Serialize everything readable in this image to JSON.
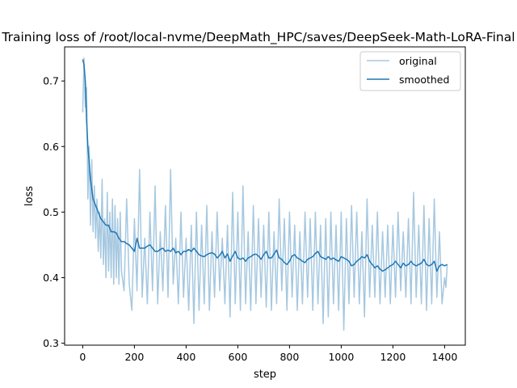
{
  "chart_data": {
    "type": "line",
    "title": "Training loss of /root/local-nvme/DeepMath_HPC/saves/DeepSeek-Math-LoRA-Final",
    "xlabel": "step",
    "ylabel": "loss",
    "xlim": [
      -70,
      1480
    ],
    "ylim": [
      0.297,
      0.752
    ],
    "xticks": [
      0,
      200,
      400,
      600,
      800,
      1000,
      1200,
      1400
    ],
    "yticks": [
      0.3,
      0.4,
      0.5,
      0.6,
      0.7
    ],
    "grid": false,
    "legend": {
      "position": "top-right",
      "entries": [
        "original",
        "smoothed"
      ]
    },
    "colors": {
      "original": "#a6c8e0",
      "smoothed": "#1f77b4"
    },
    "series": [
      {
        "name": "original",
        "x": [
          0,
          5,
          10,
          15,
          20,
          25,
          30,
          35,
          40,
          45,
          50,
          55,
          60,
          65,
          70,
          75,
          80,
          85,
          90,
          95,
          100,
          105,
          110,
          115,
          120,
          125,
          130,
          135,
          140,
          145,
          150,
          160,
          170,
          180,
          190,
          200,
          210,
          220,
          230,
          240,
          250,
          260,
          270,
          280,
          290,
          300,
          310,
          320,
          330,
          340,
          350,
          360,
          370,
          380,
          390,
          400,
          410,
          420,
          430,
          440,
          450,
          460,
          470,
          480,
          490,
          500,
          510,
          520,
          530,
          540,
          550,
          560,
          570,
          580,
          590,
          600,
          610,
          620,
          630,
          640,
          650,
          660,
          670,
          680,
          690,
          700,
          710,
          720,
          730,
          740,
          750,
          760,
          770,
          780,
          790,
          800,
          810,
          820,
          830,
          840,
          850,
          860,
          870,
          880,
          890,
          900,
          910,
          920,
          930,
          940,
          950,
          960,
          970,
          980,
          990,
          1000,
          1010,
          1020,
          1030,
          1040,
          1050,
          1060,
          1070,
          1080,
          1090,
          1100,
          1110,
          1120,
          1130,
          1140,
          1150,
          1160,
          1170,
          1180,
          1190,
          1200,
          1210,
          1220,
          1230,
          1240,
          1250,
          1260,
          1270,
          1280,
          1290,
          1300,
          1310,
          1320,
          1330,
          1340,
          1350,
          1360,
          1370,
          1380,
          1390,
          1400,
          1405,
          1410
        ],
        "y": [
          0.652,
          0.735,
          0.66,
          0.69,
          0.52,
          0.6,
          0.48,
          0.58,
          0.47,
          0.54,
          0.46,
          0.52,
          0.44,
          0.5,
          0.43,
          0.55,
          0.42,
          0.49,
          0.4,
          0.53,
          0.41,
          0.5,
          0.4,
          0.52,
          0.39,
          0.51,
          0.4,
          0.49,
          0.39,
          0.5,
          0.41,
          0.38,
          0.52,
          0.39,
          0.35,
          0.49,
          0.38,
          0.565,
          0.37,
          0.46,
          0.36,
          0.5,
          0.38,
          0.54,
          0.36,
          0.47,
          0.38,
          0.51,
          0.37,
          0.565,
          0.39,
          0.46,
          0.36,
          0.5,
          0.37,
          0.46,
          0.35,
          0.48,
          0.33,
          0.5,
          0.35,
          0.48,
          0.36,
          0.51,
          0.35,
          0.47,
          0.37,
          0.5,
          0.38,
          0.46,
          0.36,
          0.48,
          0.34,
          0.53,
          0.36,
          0.5,
          0.35,
          0.54,
          0.36,
          0.47,
          0.35,
          0.51,
          0.36,
          0.49,
          0.37,
          0.48,
          0.355,
          0.5,
          0.35,
          0.47,
          0.36,
          0.52,
          0.38,
          0.49,
          0.35,
          0.5,
          0.37,
          0.48,
          0.35,
          0.47,
          0.36,
          0.5,
          0.37,
          0.49,
          0.35,
          0.5,
          0.36,
          0.48,
          0.33,
          0.49,
          0.34,
          0.5,
          0.36,
          0.48,
          0.35,
          0.5,
          0.32,
          0.49,
          0.36,
          0.51,
          0.37,
          0.5,
          0.36,
          0.47,
          0.34,
          0.52,
          0.37,
          0.48,
          0.37,
          0.5,
          0.36,
          0.47,
          0.37,
          0.48,
          0.36,
          0.48,
          0.37,
          0.5,
          0.38,
          0.47,
          0.37,
          0.49,
          0.36,
          0.53,
          0.37,
          0.48,
          0.36,
          0.51,
          0.35,
          0.49,
          0.36,
          0.52,
          0.37,
          0.47,
          0.36,
          0.4,
          0.385,
          0.42
        ]
      },
      {
        "name": "smoothed",
        "x": [
          0,
          5,
          10,
          15,
          20,
          30,
          40,
          50,
          60,
          70,
          80,
          90,
          100,
          110,
          120,
          130,
          140,
          150,
          160,
          170,
          180,
          190,
          200,
          210,
          220,
          230,
          240,
          250,
          260,
          270,
          280,
          290,
          300,
          310,
          320,
          330,
          340,
          350,
          360,
          370,
          380,
          390,
          400,
          410,
          420,
          430,
          440,
          450,
          460,
          470,
          480,
          490,
          500,
          510,
          520,
          530,
          540,
          550,
          560,
          570,
          580,
          590,
          600,
          610,
          620,
          630,
          640,
          650,
          660,
          670,
          680,
          690,
          700,
          710,
          720,
          730,
          740,
          750,
          760,
          770,
          780,
          790,
          800,
          810,
          820,
          830,
          840,
          850,
          860,
          870,
          880,
          890,
          900,
          910,
          920,
          930,
          940,
          950,
          960,
          970,
          980,
          990,
          1000,
          1010,
          1020,
          1030,
          1040,
          1050,
          1060,
          1070,
          1080,
          1090,
          1100,
          1110,
          1120,
          1130,
          1140,
          1150,
          1160,
          1170,
          1180,
          1190,
          1200,
          1210,
          1220,
          1230,
          1240,
          1250,
          1260,
          1270,
          1280,
          1290,
          1300,
          1310,
          1320,
          1330,
          1340,
          1350,
          1360,
          1370,
          1380,
          1390,
          1400,
          1410
        ],
        "y": [
          0.733,
          0.725,
          0.7,
          0.64,
          0.6,
          0.55,
          0.52,
          0.51,
          0.5,
          0.49,
          0.485,
          0.48,
          0.48,
          0.47,
          0.47,
          0.468,
          0.46,
          0.455,
          0.455,
          0.452,
          0.45,
          0.445,
          0.44,
          0.46,
          0.445,
          0.445,
          0.445,
          0.448,
          0.45,
          0.445,
          0.44,
          0.44,
          0.443,
          0.445,
          0.44,
          0.442,
          0.44,
          0.445,
          0.438,
          0.44,
          0.435,
          0.44,
          0.44,
          0.443,
          0.44,
          0.445,
          0.44,
          0.435,
          0.433,
          0.432,
          0.435,
          0.437,
          0.438,
          0.436,
          0.43,
          0.434,
          0.44,
          0.43,
          0.436,
          0.425,
          0.433,
          0.44,
          0.43,
          0.428,
          0.43,
          0.425,
          0.43,
          0.432,
          0.435,
          0.436,
          0.433,
          0.428,
          0.435,
          0.44,
          0.43,
          0.43,
          0.436,
          0.442,
          0.43,
          0.428,
          0.423,
          0.42,
          0.425,
          0.433,
          0.435,
          0.43,
          0.428,
          0.425,
          0.423,
          0.428,
          0.43,
          0.432,
          0.437,
          0.44,
          0.432,
          0.43,
          0.428,
          0.432,
          0.428,
          0.43,
          0.427,
          0.425,
          0.432,
          0.43,
          0.428,
          0.425,
          0.418,
          0.42,
          0.425,
          0.428,
          0.432,
          0.43,
          0.435,
          0.425,
          0.42,
          0.415,
          0.418,
          0.413,
          0.41,
          0.412,
          0.415,
          0.418,
          0.42,
          0.425,
          0.42,
          0.415,
          0.422,
          0.418,
          0.42,
          0.425,
          0.42,
          0.418,
          0.42,
          0.422,
          0.428,
          0.42,
          0.418,
          0.42,
          0.425,
          0.41,
          0.418,
          0.42,
          0.418,
          0.42
        ]
      }
    ]
  }
}
